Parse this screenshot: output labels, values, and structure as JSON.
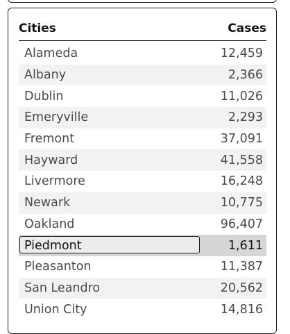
{
  "table": {
    "headers": {
      "city": "Cities",
      "cases": "Cases"
    },
    "selected_city": "Piedmont",
    "rows": [
      {
        "city": "Alameda",
        "cases": "12,459"
      },
      {
        "city": "Albany",
        "cases": "2,366"
      },
      {
        "city": "Dublin",
        "cases": "11,026"
      },
      {
        "city": "Emeryville",
        "cases": "2,293"
      },
      {
        "city": "Fremont",
        "cases": "37,091"
      },
      {
        "city": "Hayward",
        "cases": "41,558"
      },
      {
        "city": "Livermore",
        "cases": "16,248"
      },
      {
        "city": "Newark",
        "cases": "10,775"
      },
      {
        "city": "Oakland",
        "cases": "96,407"
      },
      {
        "city": "Piedmont",
        "cases": "1,611"
      },
      {
        "city": "Pleasanton",
        "cases": "11,387"
      },
      {
        "city": "San Leandro",
        "cases": "20,562"
      },
      {
        "city": "Union City",
        "cases": "14,816"
      }
    ]
  }
}
